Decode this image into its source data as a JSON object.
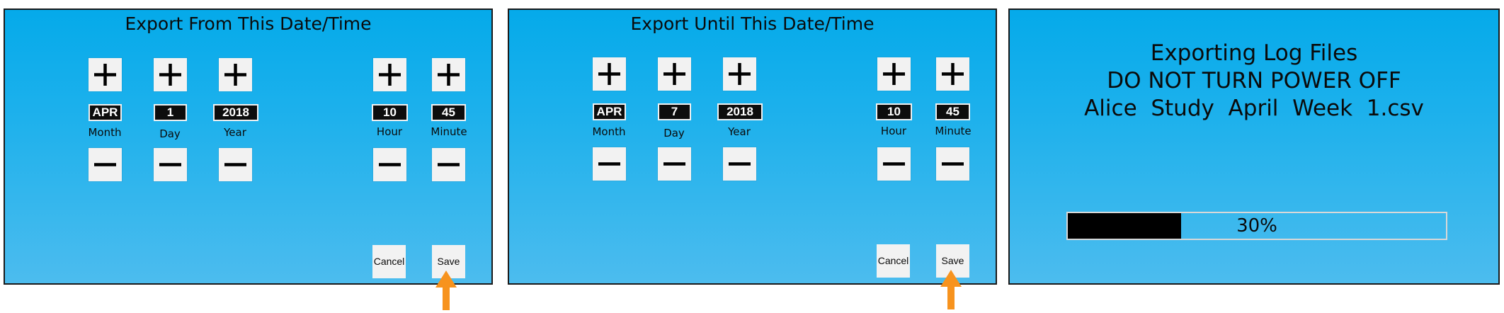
{
  "from_screen": {
    "title": "Export From This Date/Time",
    "fields": [
      {
        "label": "Month",
        "value": "APR"
      },
      {
        "label": "Day",
        "value": "1"
      },
      {
        "label": "Year",
        "value": "2018"
      },
      {
        "label": "Hour",
        "value": "10"
      },
      {
        "label": "Minute",
        "value": "45"
      }
    ],
    "cancel_label": "Cancel",
    "save_label": "Save"
  },
  "until_screen": {
    "title": "Export Until This Date/Time",
    "fields": [
      {
        "label": "Month",
        "value": "APR"
      },
      {
        "label": "Day",
        "value": "7"
      },
      {
        "label": "Year",
        "value": "2018"
      },
      {
        "label": "Hour",
        "value": "10"
      },
      {
        "label": "Minute",
        "value": "45"
      }
    ],
    "cancel_label": "Cancel",
    "save_label": "Save"
  },
  "progress_screen": {
    "line1": "Exporting Log Files",
    "line2": "DO NOT TURN POWER OFF",
    "line3": "Alice  Study  April  Week  1.csv",
    "progress_text": "30%",
    "progress_percent": 30
  },
  "colors": {
    "panel_top": "#05aaea",
    "panel_bottom": "#4cbcee",
    "arrow": "#f7931e",
    "progress_fill": "#000000"
  },
  "icons": {
    "increment": "plus-icon",
    "decrement": "minus-icon",
    "pointer": "arrow-up-icon"
  }
}
